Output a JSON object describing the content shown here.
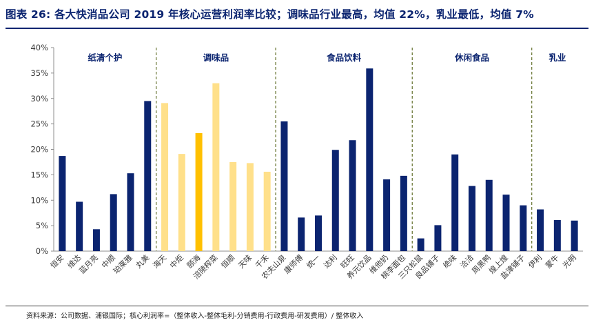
{
  "header": {
    "title": "图表 26: 各大快消品公司 2019 年核心运营利润率比较；调味品行业最高，均值 22%，乳业最低，均值 7%"
  },
  "footer": {
    "source": "资料来源：公司数据、浦银国际；核心利润率=（整体收入-整体毛利-分销费用-行政费用-研发费用）/ 整体收入"
  },
  "chart_data": {
    "type": "bar",
    "ylim": [
      0,
      40
    ],
    "y_ticks": [
      "0%",
      "5%",
      "10%",
      "15%",
      "20%",
      "25%",
      "30%",
      "35%",
      "40%"
    ],
    "unit": "%",
    "grid": false,
    "groups": [
      {
        "name": "纸清个护",
        "start": 0,
        "end": 6
      },
      {
        "name": "调味品",
        "start": 6,
        "end": 13
      },
      {
        "name": "食品饮料",
        "start": 13,
        "end": 21
      },
      {
        "name": "休闲食品",
        "start": 21,
        "end": 28
      },
      {
        "name": "乳业",
        "start": 28,
        "end": 31
      }
    ],
    "categories": [
      "恒安",
      "维达",
      "蓝月亮",
      "中顺",
      "珀莱雅",
      "丸美",
      "海天",
      "中炬",
      "颐海",
      "涪陵榨菜",
      "恒顺",
      "天味",
      "千禾",
      "农夫山泉",
      "康师傅",
      "统一",
      "达利",
      "旺旺",
      "养元饮品",
      "维他奶",
      "桃李面包",
      "三只松鼠",
      "良品铺子",
      "绝味",
      "洽洽",
      "周黑鸭",
      "煌上煌",
      "盐津铺子",
      "伊利",
      "蒙牛",
      "光明"
    ],
    "values": [
      18.7,
      9.7,
      4.3,
      11.2,
      15.3,
      29.5,
      29.1,
      19.1,
      23.2,
      33.0,
      17.5,
      17.3,
      15.6,
      25.5,
      6.6,
      7.0,
      19.9,
      21.8,
      35.9,
      14.1,
      14.8,
      2.5,
      5.1,
      19.0,
      12.8,
      14.0,
      11.1,
      9.0,
      8.2,
      6.1,
      6.0
    ],
    "highlight_index": 8,
    "colors": {
      "default": "#0b2470",
      "seasoning": "#ffe08a",
      "highlight": "#ffc000",
      "divider": "#6f7b3c",
      "axis": "#8c8c8c",
      "text": "#3a3a3a",
      "title": "#0b2470"
    }
  }
}
